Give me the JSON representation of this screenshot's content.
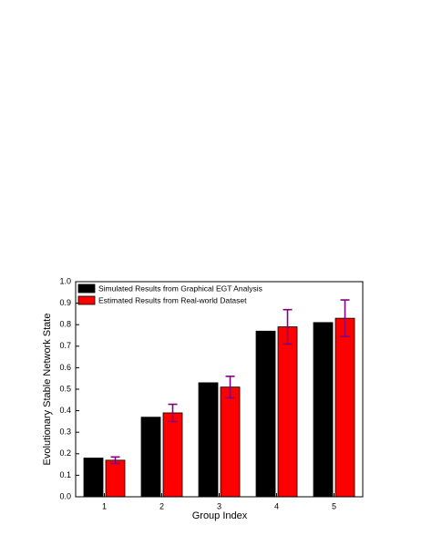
{
  "chart_data": {
    "type": "bar",
    "xlabel": "Group Index",
    "ylabel": "Evolutionary Stable Network State",
    "categories": [
      "1",
      "2",
      "3",
      "4",
      "5"
    ],
    "series": [
      {
        "name": "Simulated Results from Graphical EGT Analysis",
        "color": "#000000",
        "values": [
          0.18,
          0.37,
          0.53,
          0.77,
          0.81
        ]
      },
      {
        "name": "Estimated Results from Real-world Dataset",
        "color": "#ff0000",
        "values": [
          0.17,
          0.39,
          0.51,
          0.79,
          0.83
        ],
        "errors": [
          0.015,
          0.04,
          0.05,
          0.08,
          0.085
        ],
        "error_color": "#800080"
      }
    ],
    "ylim": [
      0,
      1
    ],
    "yticks": [
      {
        "value": 0,
        "label": "0.0"
      },
      0.1,
      0.2,
      0.3,
      0.4,
      0.5,
      0.6,
      0.7,
      0.8,
      0.9,
      {
        "value": 1,
        "label": "1.0"
      }
    ],
    "legend": "upper left"
  }
}
